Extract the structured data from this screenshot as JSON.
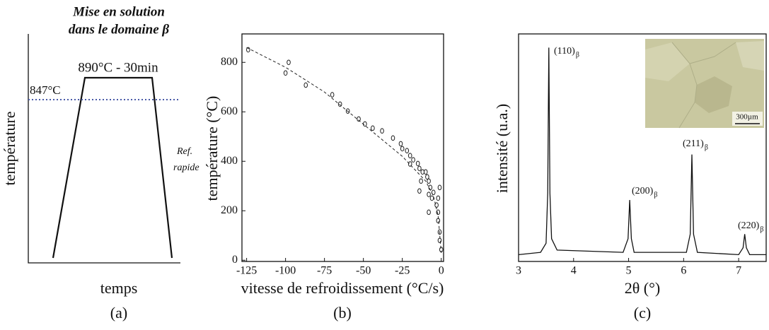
{
  "chart_data": [
    {
      "type": "schematic",
      "title": [
        "Mise en solution",
        "dans le domaine β"
      ],
      "plateau_label": "890°C - 30min",
      "threshold_label": "847°C",
      "threshold_color": "#4a5aa8",
      "ylabel": "température",
      "xlabel": "temps",
      "annotation": [
        "Ref.",
        "rapide"
      ],
      "panel_label": "(a)"
    },
    {
      "type": "scatter",
      "ylabel": "température (°C)",
      "xlabel": "vitesse de refroidissement (°C/s)",
      "panel_label": "(b)",
      "xlim": [
        -128,
        1.5
      ],
      "ylim": [
        -5,
        915
      ],
      "xticks": [
        -125,
        -100,
        -75,
        -50,
        -25,
        0
      ],
      "yticks": [
        0,
        200,
        400,
        600,
        800
      ],
      "color": "#222222",
      "series": [
        {
          "marker": "circle",
          "x": [
            -124,
            -98,
            -100,
            -87,
            -70,
            -65,
            -60,
            -53,
            -49,
            -44,
            -38,
            -31,
            -26,
            -25,
            -22,
            -20,
            -18,
            -15,
            -14,
            -12,
            -10,
            -9,
            -8,
            -7,
            -5,
            -8,
            -6,
            -13,
            -14,
            -3,
            -2,
            -2,
            -1,
            -1,
            0,
            -1,
            -2,
            -8,
            -20
          ],
          "values": [
            851,
            800,
            757,
            708,
            669,
            631,
            603,
            571,
            551,
            534,
            523,
            494,
            471,
            451,
            443,
            423,
            406,
            391,
            371,
            357,
            357,
            337,
            320,
            294,
            274,
            266,
            251,
            320,
            280,
            223,
            194,
            160,
            114,
            80,
            43,
            294,
            251,
            194,
            389
          ]
        },
        {
          "line": "dashed",
          "x": [
            -125,
            -100,
            -75,
            -50,
            -25,
            -10,
            -5,
            -2,
            0
          ],
          "values": [
            860,
            780,
            680,
            550,
            420,
            320,
            260,
            180,
            30
          ]
        }
      ]
    },
    {
      "type": "line",
      "ylabel": "intensité (u.a.)",
      "xlabel": "2θ (°)",
      "panel_label": "(c)",
      "xlim": [
        3,
        7.5
      ],
      "ylim": [
        0,
        1
      ],
      "xticks": [
        3,
        4,
        5,
        6,
        7
      ],
      "color": "#111111",
      "x": [
        3,
        3.4,
        3.5,
        3.53,
        3.55,
        3.57,
        3.6,
        3.7,
        4.9,
        4.99,
        5.02,
        5.05,
        5.1,
        6.05,
        6.12,
        6.15,
        6.18,
        6.25,
        7.0,
        7.08,
        7.11,
        7.14,
        7.2,
        7.5
      ],
      "values": [
        0.03,
        0.04,
        0.08,
        0.3,
        0.94,
        0.3,
        0.1,
        0.05,
        0.04,
        0.1,
        0.27,
        0.1,
        0.04,
        0.04,
        0.12,
        0.47,
        0.12,
        0.04,
        0.03,
        0.06,
        0.12,
        0.06,
        0.03,
        0.03
      ],
      "peak_labels": [
        {
          "label": "(110)",
          "sub": "β"
        },
        {
          "label": "(200)",
          "sub": "β"
        },
        {
          "label": "(211)",
          "sub": "β"
        },
        {
          "label": "(220)",
          "sub": "β"
        }
      ],
      "inset_scale": "300µm"
    }
  ]
}
